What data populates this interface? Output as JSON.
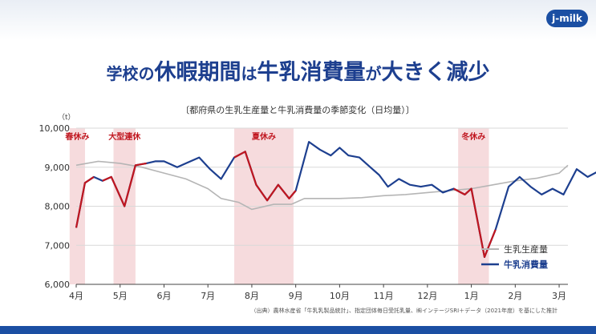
{
  "logo": {
    "text": "j-milk"
  },
  "headline": {
    "parts": [
      {
        "text": "学校の",
        "size": "sm"
      },
      {
        "text": "休暇期間",
        "size": "lg"
      },
      {
        "text": "は",
        "size": "sm"
      },
      {
        "text": "牛乳消費量",
        "size": "lg"
      },
      {
        "text": "が",
        "size": "sm"
      },
      {
        "text": "大きく減少",
        "size": "lg"
      }
    ]
  },
  "source_note": "（出典）農林水産省「牛乳乳製品統計」、指定団体毎日受託乳量、㈱インテージSRI＋データ（2021年度）を基にした推計",
  "chart_data": {
    "type": "line",
    "title": "〔都府県の生乳生産量と牛乳消費量の季節変化（日均量）〕",
    "ylabel": "（t）",
    "ylim": [
      6000,
      10000
    ],
    "yticks": [
      6000,
      7000,
      8000,
      9000,
      10000
    ],
    "ytick_labels": [
      "6,000",
      "7,000",
      "8,000",
      "9,000",
      "10,000"
    ],
    "xlim": [
      4.0,
      15.2
    ],
    "xticks": [
      4,
      5,
      6,
      7,
      8,
      9,
      10,
      11,
      12,
      13,
      14,
      15
    ],
    "xtick_labels": [
      "4月",
      "5月",
      "6月",
      "7月",
      "8月",
      "9月",
      "10月",
      "11月",
      "12月",
      "1月",
      "2月",
      "3月"
    ],
    "holidays": [
      {
        "label": "春休み",
        "start": 3.85,
        "end": 4.2
      },
      {
        "label": "大型連休",
        "start": 4.85,
        "end": 5.35
      },
      {
        "label": "夏休み",
        "start": 7.6,
        "end": 8.95
      },
      {
        "label": "冬休み",
        "start": 12.7,
        "end": 13.4
      }
    ],
    "series": [
      {
        "name": "生乳生産量",
        "color": "#b5b5b5",
        "x": [
          4.0,
          4.5,
          5.0,
          5.5,
          6.0,
          6.5,
          7.0,
          7.3,
          7.7,
          8.0,
          8.5,
          8.9,
          9.2,
          9.5,
          10.0,
          10.5,
          11.0,
          11.5,
          12.0,
          12.5,
          13.0,
          13.5,
          14.0,
          14.5,
          15.0,
          15.2
        ],
        "values": [
          9050,
          9150,
          9100,
          9000,
          8850,
          8700,
          8450,
          8200,
          8100,
          7920,
          8050,
          8050,
          8200,
          8200,
          8200,
          8220,
          8270,
          8300,
          8350,
          8400,
          8450,
          8550,
          8650,
          8720,
          8850,
          9050
        ]
      },
      {
        "name": "牛乳消費量",
        "color": "#1d3f8f",
        "x": [
          4.0,
          4.2,
          4.4,
          4.6,
          4.8,
          5.1,
          5.35,
          5.6,
          5.8,
          6.0,
          6.3,
          6.5,
          6.8,
          7.05,
          7.3,
          7.6,
          7.85,
          8.1,
          8.35,
          8.6,
          8.85,
          9.0,
          9.3,
          9.55,
          9.8,
          10.0,
          10.2,
          10.45,
          10.7,
          10.9,
          11.1,
          11.35,
          11.6,
          11.85,
          12.1,
          12.35,
          12.6,
          12.85,
          13.0,
          13.3,
          13.55,
          13.85,
          14.1,
          14.35,
          14.6,
          14.85,
          15.1,
          15.4,
          15.65,
          15.9
        ],
        "values": [
          7450,
          8600,
          8750,
          8650,
          8750,
          8000,
          9050,
          9100,
          9150,
          9150,
          9000,
          9100,
          9250,
          8950,
          8700,
          9250,
          9400,
          8550,
          8150,
          8550,
          8200,
          8400,
          9650,
          9450,
          9300,
          9500,
          9300,
          9250,
          9000,
          8800,
          8500,
          8700,
          8550,
          8500,
          8550,
          8350,
          8450,
          8300,
          8450,
          6700,
          7400,
          8500,
          8750,
          8500,
          8300,
          8450,
          8300,
          8950,
          8750,
          8900
        ]
      }
    ]
  }
}
